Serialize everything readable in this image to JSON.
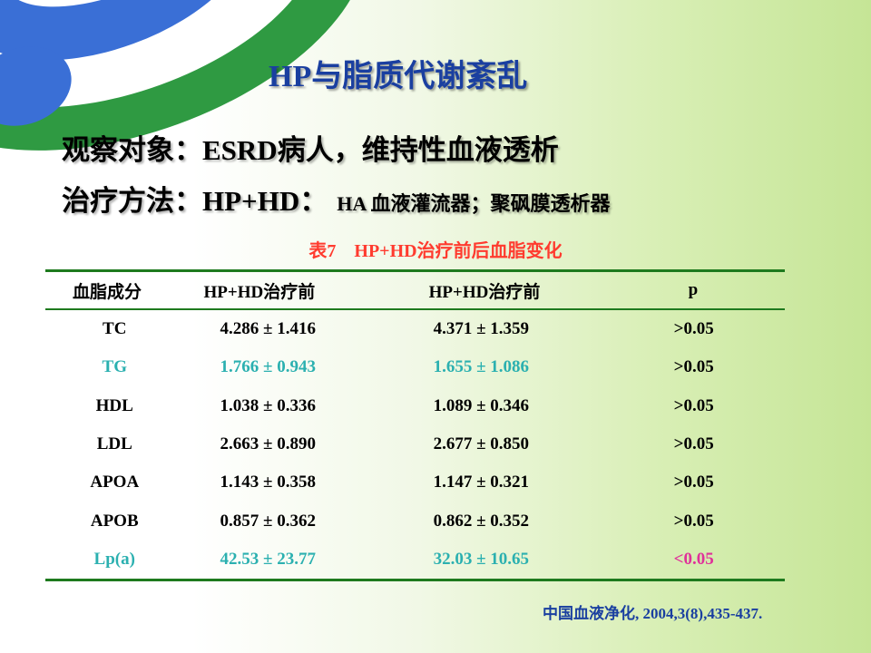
{
  "title": "HP与脂质代谢紊乱",
  "subject": "观察对象：ESRD病人，维持性血液透析",
  "method_main": "治疗方法：HP+HD：",
  "method_detail": "HA 血液灌流器；聚砜膜透析器",
  "table": {
    "caption": "表7　HP+HD治疗前后血脂变化",
    "headers": [
      "血脂成分",
      "HP+HD治疗前",
      "HP+HD治疗前",
      "p"
    ],
    "rows": [
      {
        "name": "TC",
        "before": "4.286 ± 1.416",
        "after": "4.371 ± 1.359",
        "p": ">0.05"
      },
      {
        "name": "TG",
        "before": "1.766 ± 0.943",
        "after": "1.655 ± 1.086",
        "p": ">0.05"
      },
      {
        "name": "HDL",
        "before": "1.038 ± 0.336",
        "after": "1.089 ± 0.346",
        "p": ">0.05"
      },
      {
        "name": "LDL",
        "before": "2.663 ± 0.890",
        "after": "2.677 ± 0.850",
        "p": ">0.05"
      },
      {
        "name": "APOA",
        "before": "1.143 ± 0.358",
        "after": "1.147 ± 0.321",
        "p": ">0.05"
      },
      {
        "name": "APOB",
        "before": "0.857 ± 0.362",
        "after": "0.862 ± 0.352",
        "p": ">0.05"
      },
      {
        "name": "Lp(a)",
        "before": "42.53 ± 23.77",
        "after": "32.03 ± 10.65",
        "p": "<0.05"
      }
    ]
  },
  "citation": "中国血液净化, 2004,3(8),435-437.",
  "colors": {
    "title": "#1a3fa0",
    "caption": "#ff3b2f",
    "highlight_teal": "#2bb0b0",
    "highlight_magenta": "#e0309a",
    "rule_green": "#1e7a1e",
    "citation": "#1a3fa0"
  }
}
